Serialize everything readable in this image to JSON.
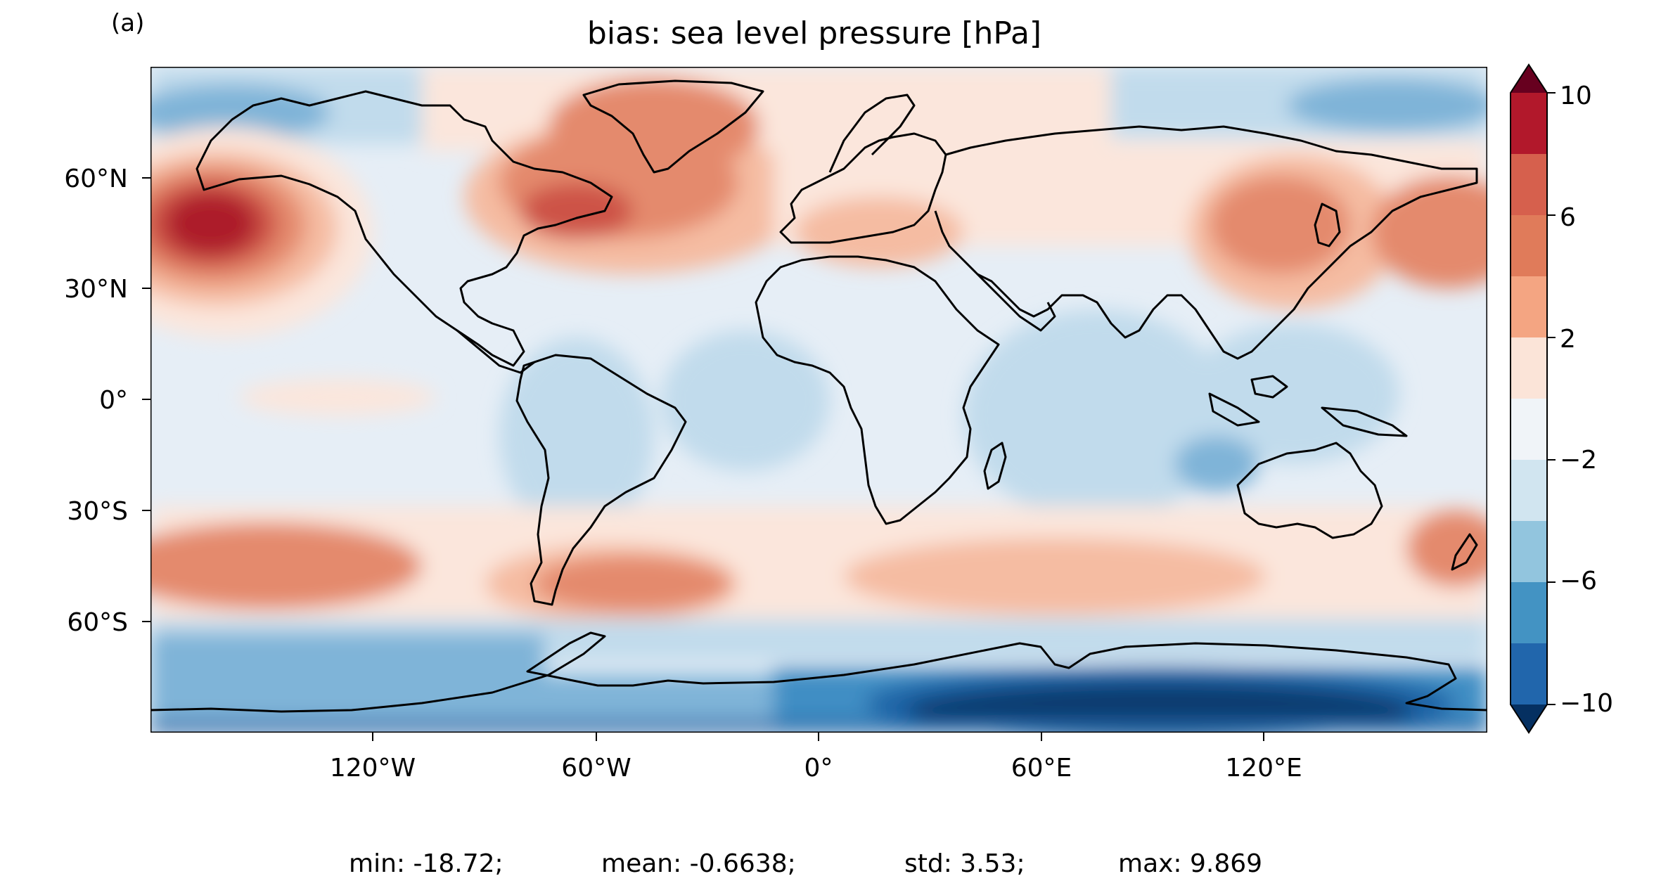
{
  "panel_label": "(a)",
  "title": "bias: sea level pressure [hPa]",
  "map": {
    "projection": "PlateCarree",
    "lon_ticks": [
      "120°W",
      "60°W",
      "0°",
      "60°E",
      "120°E"
    ],
    "lat_ticks": [
      "60°N",
      "30°N",
      "0°",
      "30°S",
      "60°S"
    ],
    "regions": [
      {
        "name": "North Pacific",
        "level": "6 to 10"
      },
      {
        "name": "Antarctica",
        "level": "below -10"
      },
      {
        "name": "North Atlantic / Greenland",
        "level": "4 to 8"
      },
      {
        "name": "Southern mid-latitudes",
        "level": "2 to 6"
      },
      {
        "name": "Tropics / Indian Ocean",
        "level": "-4 to 0"
      },
      {
        "name": "NW Pacific / Japan",
        "level": "2 to 6"
      }
    ]
  },
  "colorbar": {
    "ticks": [
      "10",
      "6",
      "2",
      "−2",
      "−6",
      "−10"
    ],
    "levels": [
      -10,
      -8,
      -6,
      -4,
      -2,
      0,
      2,
      4,
      6,
      8,
      10
    ],
    "colors": [
      "#053061",
      "#2166ac",
      "#4393c3",
      "#92c5de",
      "#d1e5f0",
      "#f0f4f8",
      "#fbe4d8",
      "#f4a582",
      "#e07b5a",
      "#d6604d",
      "#b2182b",
      "#67001f"
    ],
    "extend": "both"
  },
  "stats": {
    "min": "min: -18.72;",
    "mean": "mean: -0.6638;",
    "std": "std: 3.53;",
    "max": "max: 9.869"
  },
  "colors": {
    "c_m10": "#0b3a6e",
    "c_m8": "#1f63a6",
    "c_m6": "#3f8ec4",
    "c_m4": "#7fb4d8",
    "c_m2": "#c1dbec",
    "c_0": "#e6eef6",
    "c_2": "#fbe6dc",
    "c_4": "#f5bca2",
    "c_6": "#e48a6d",
    "c_8": "#cd5346",
    "c_10": "#ad1c2c",
    "c_top": "#6a0a22"
  }
}
